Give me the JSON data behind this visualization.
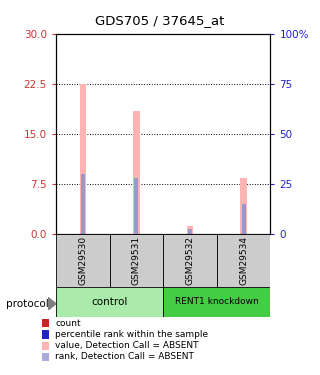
{
  "title": "GDS705 / 37645_at",
  "samples": [
    "GSM29530",
    "GSM29531",
    "GSM29532",
    "GSM29534"
  ],
  "pink_values": [
    22.5,
    18.5,
    1.3,
    8.5
  ],
  "blue_rank_pct": [
    30.0,
    28.0,
    2.5,
    15.0
  ],
  "red_count_values": [
    0.08,
    0.08,
    0.08,
    0.08
  ],
  "ylim_left": [
    0,
    30
  ],
  "ylim_right": [
    0,
    100
  ],
  "yticks_left": [
    0,
    7.5,
    15,
    22.5,
    30
  ],
  "yticks_right": [
    0,
    25,
    50,
    75,
    100
  ],
  "yticklabels_right": [
    "0",
    "25",
    "50",
    "75",
    "100%"
  ],
  "left_tick_color": "#cc3333",
  "right_tick_color": "#2222cc",
  "pink_color": "#ffb3b3",
  "blue_color": "#9999cc",
  "red_color": "#cc2222",
  "group_control_color": "#aaeaaa",
  "group_knockdown_color": "#44cc44",
  "sample_box_color": "#cccccc",
  "protocol_label": "protocol",
  "legend_items": [
    {
      "color": "#cc2222",
      "label": "count"
    },
    {
      "color": "#2222cc",
      "label": "percentile rank within the sample"
    },
    {
      "color": "#ffb3b3",
      "label": "value, Detection Call = ABSENT"
    },
    {
      "color": "#aaaadd",
      "label": "rank, Detection Call = ABSENT"
    }
  ]
}
